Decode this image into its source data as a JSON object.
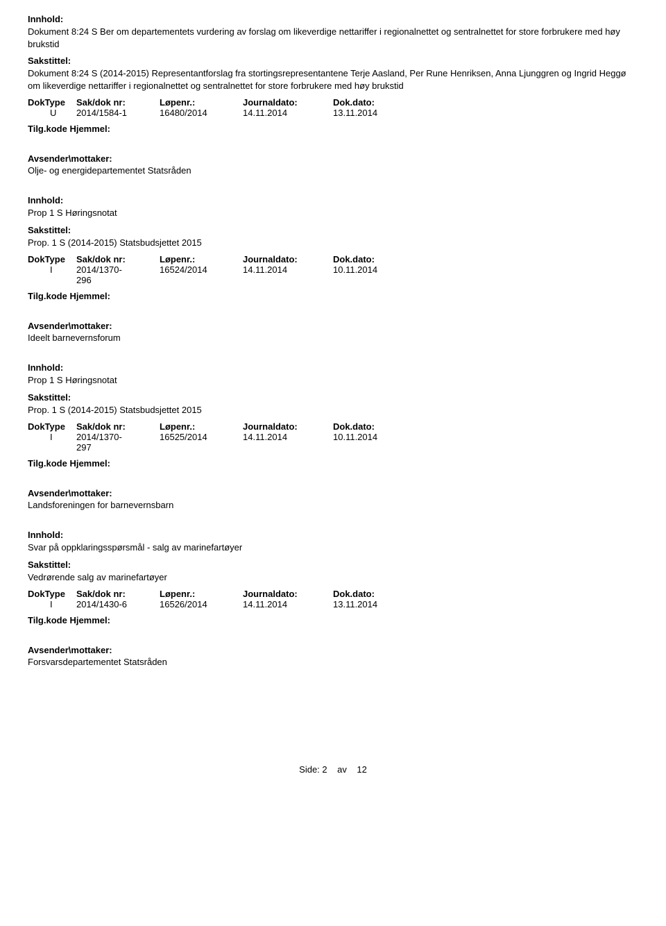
{
  "labels": {
    "innhold": "Innhold:",
    "sakstittel": "Sakstittel:",
    "doktype": "DokType",
    "saknr": "Sak/dok nr:",
    "lopenr": "Løpenr.:",
    "journaldato": "Journaldato:",
    "dokdato": "Dok.dato:",
    "tilgkode": "Tilg.kode",
    "hjemmel": "Hjemmel:",
    "avsender": "Avsender\\mottaker:"
  },
  "entries": [
    {
      "innhold": "Dokument 8:24 S Ber om departementets vurdering av forslag om likeverdige nettariffer i regionalnettet og sentralnettet for store forbrukere med høy brukstid",
      "sakstittel": "Dokument 8:24 S (2014-2015) Representantforslag fra stortingsrepresentantene Terje Aasland, Per Rune Henriksen, Anna Ljunggren og Ingrid Heggø om likeverdige nettariffer i regionalnettet og sentralnettet for store forbrukere med høy brukstid",
      "doktype": "U",
      "saknr": "2014/1584-1",
      "lopenr": "16480/2014",
      "journaldato": "14.11.2014",
      "dokdato": "13.11.2014",
      "avsender": "Olje- og energidepartementet Statsråden"
    },
    {
      "innhold": "Prop 1 S Høringsnotat",
      "sakstittel": "Prop. 1 S (2014-2015) Statsbudsjettet 2015",
      "doktype": "I",
      "saknr": "2014/1370-296",
      "saknr_multiline": [
        "2014/1370-",
        "296"
      ],
      "lopenr": "16524/2014",
      "journaldato": "14.11.2014",
      "dokdato": "10.11.2014",
      "avsender": "Ideelt barnevernsforum"
    },
    {
      "innhold": "Prop 1 S Høringsnotat",
      "sakstittel": "Prop. 1 S (2014-2015) Statsbudsjettet 2015",
      "doktype": "I",
      "saknr": "2014/1370-297",
      "saknr_multiline": [
        "2014/1370-",
        "297"
      ],
      "lopenr": "16525/2014",
      "journaldato": "14.11.2014",
      "dokdato": "10.11.2014",
      "avsender": "Landsforeningen for barnevernsbarn"
    },
    {
      "innhold": "Svar på oppklaringsspørsmål - salg av marinefartøyer",
      "sakstittel": "Vedrørende salg av marinefartøyer",
      "doktype": "I",
      "saknr": "2014/1430-6",
      "lopenr": "16526/2014",
      "journaldato": "14.11.2014",
      "dokdato": "13.11.2014",
      "avsender": "Forsvarsdepartementet Statsråden"
    }
  ],
  "footer": {
    "side": "Side:",
    "page": "2",
    "av": "av",
    "total": "12"
  }
}
